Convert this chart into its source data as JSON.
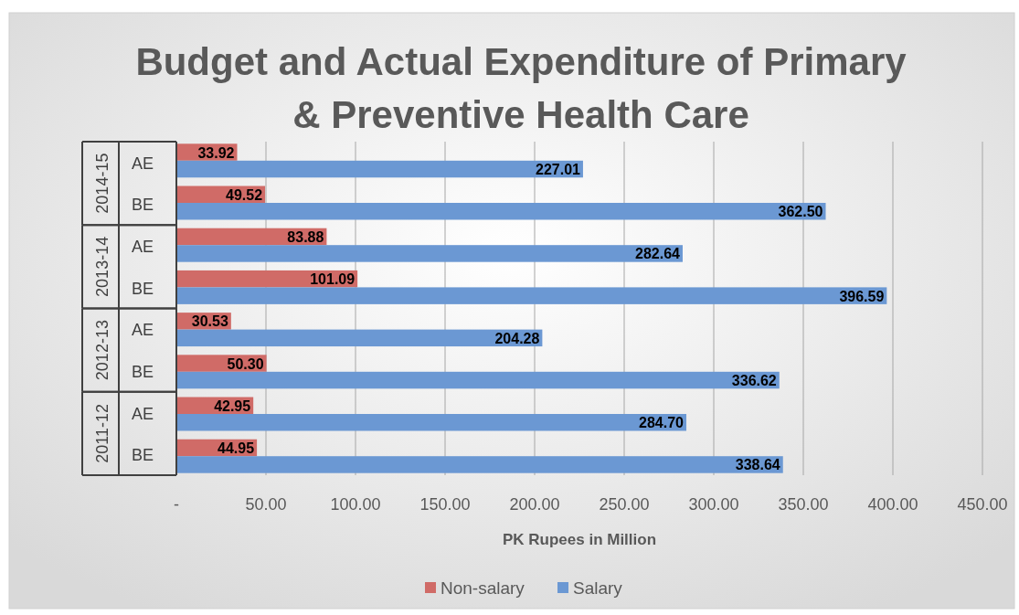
{
  "chart_data": {
    "type": "bar",
    "orientation": "horizontal",
    "title": "Budget and Actual Expenditure of Primary & Preventive Health Care",
    "xlabel": "PK Rupees in Million",
    "categories": [
      "AE",
      "BE",
      "AE",
      "BE",
      "AE",
      "BE",
      "AE",
      "BE"
    ],
    "annotations": [
      "2014-15",
      "2013-14",
      "2012-13",
      "2011-12"
    ],
    "series": [
      {
        "name": "Non-salary",
        "color": "#d06b67",
        "values": [
          33.92,
          49.52,
          83.88,
          101.09,
          30.53,
          50.3,
          42.95,
          44.95
        ],
        "value_labels": [
          "33.92",
          "49.52",
          "83.88",
          "101.09",
          "30.53",
          "50.30",
          "42.95",
          "44.95"
        ]
      },
      {
        "name": "Salary",
        "color": "#6b98d3",
        "values": [
          227.01,
          362.5,
          282.64,
          396.59,
          204.28,
          336.62,
          284.7,
          338.64
        ],
        "value_labels": [
          "227.01",
          "362.50",
          "282.64",
          "396.59",
          "204.28",
          "336.62",
          "284.70",
          "338.64"
        ]
      }
    ],
    "xlim": [
      0,
      450
    ],
    "xticks": [
      {
        "value": 0,
        "label": "-"
      },
      {
        "value": 50,
        "label": "50.00"
      },
      {
        "value": 100,
        "label": "100.00"
      },
      {
        "value": 150,
        "label": "150.00"
      },
      {
        "value": 200,
        "label": "200.00"
      },
      {
        "value": 250,
        "label": "250.00"
      },
      {
        "value": 300,
        "label": "300.00"
      },
      {
        "value": 350,
        "label": "350.00"
      },
      {
        "value": 400,
        "label": "400.00"
      },
      {
        "value": 450,
        "label": "450.00"
      }
    ],
    "grid": "x",
    "legend": "bottom"
  }
}
